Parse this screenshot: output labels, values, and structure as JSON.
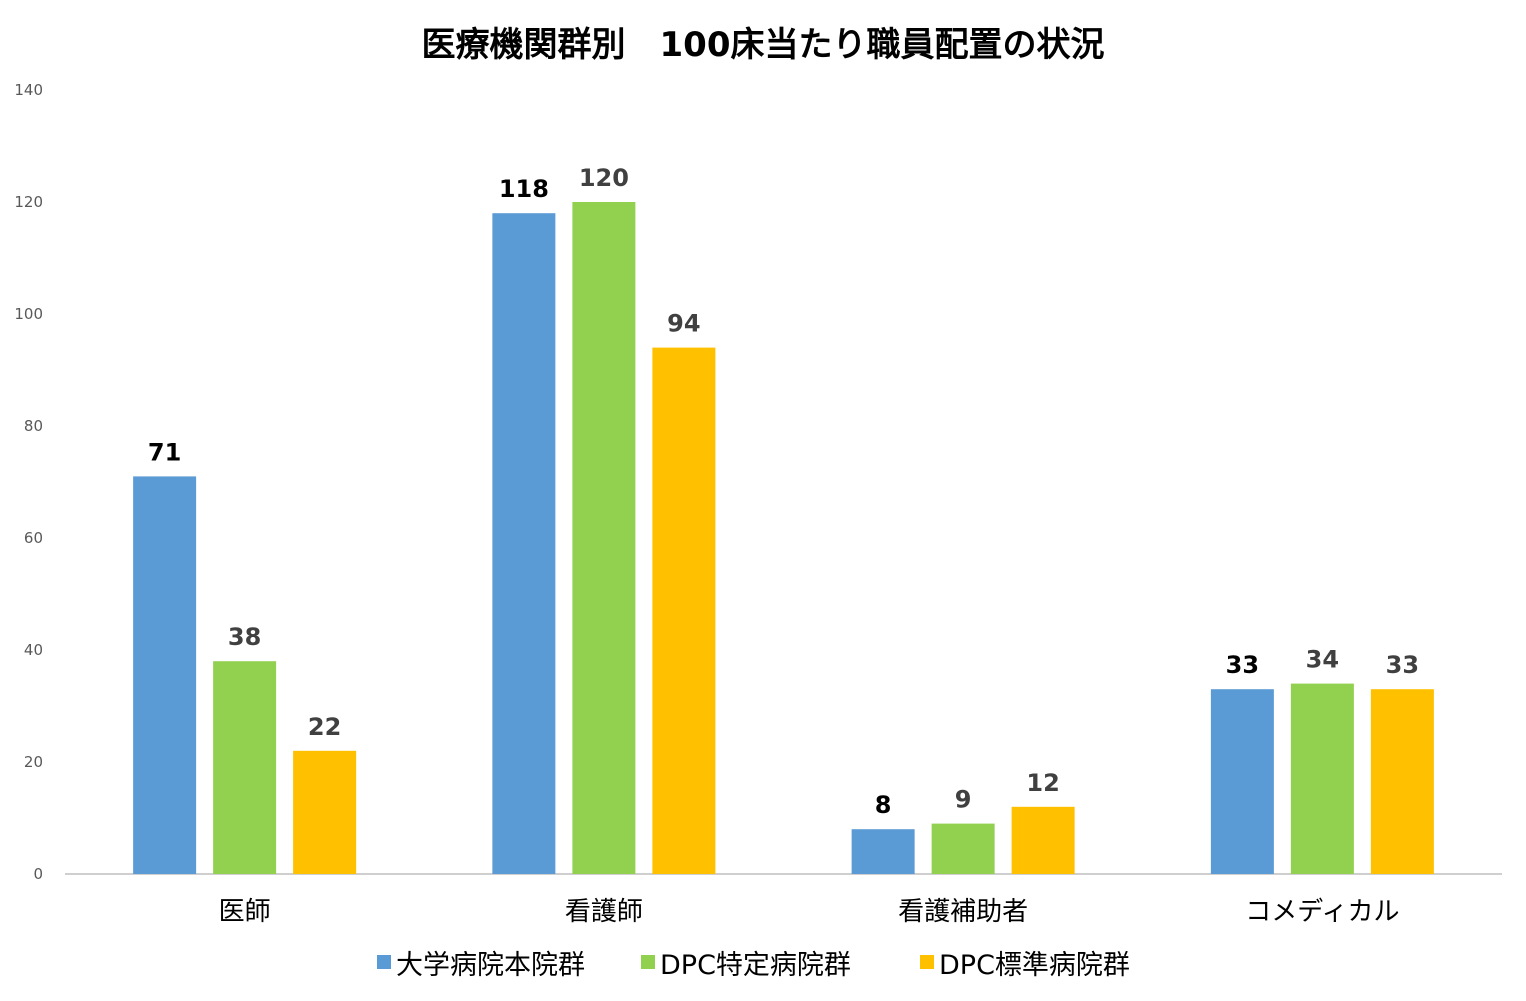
{
  "chart_data": {
    "type": "bar",
    "title": "医療機関群別　100床当たり職員配置の状況",
    "xlabel": "",
    "ylabel": "",
    "ylim": [
      0,
      140
    ],
    "yticks": [
      0,
      20,
      40,
      60,
      80,
      100,
      120,
      140
    ],
    "grid": false,
    "legend_position": "bottom",
    "categories": [
      "医師",
      "看護師",
      "看護補助者",
      "コメディカル"
    ],
    "series": [
      {
        "name": "大学病院本院群",
        "color": "#5B9BD5",
        "label_color": "#000000",
        "values": [
          71,
          118,
          8,
          33
        ],
        "labels": [
          "71",
          "118",
          "8",
          "33"
        ]
      },
      {
        "name": "DPC特定病院群",
        "color": "#92D050",
        "label_color": "#404040",
        "values": [
          38,
          120,
          9,
          34
        ],
        "labels": [
          "38",
          "120",
          "9",
          "34"
        ]
      },
      {
        "name": "DPC標準病院群",
        "color": "#FFC000",
        "label_color": "#404040",
        "values": [
          22,
          94,
          12,
          33
        ],
        "labels": [
          "22",
          "94",
          "12",
          "33"
        ]
      }
    ]
  }
}
